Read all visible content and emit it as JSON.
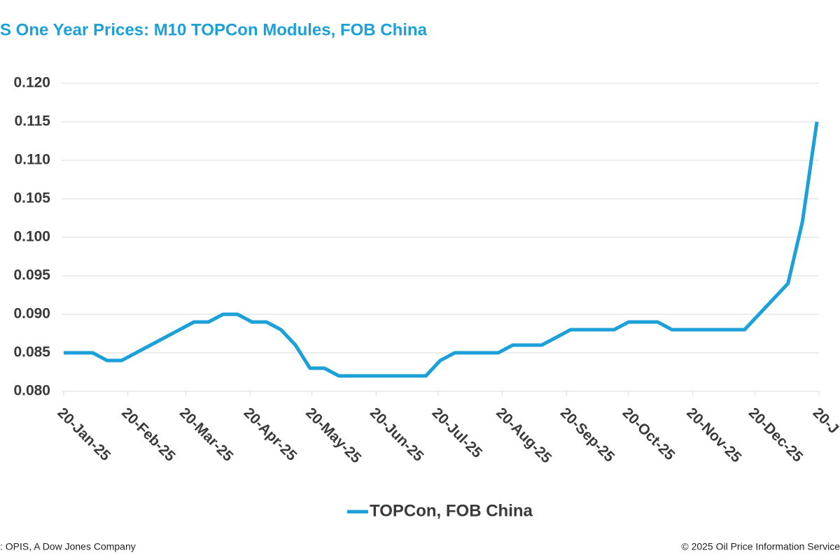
{
  "chart_data": {
    "type": "line",
    "title": "S One Year Prices: M10 TOPCon Modules, FOB China",
    "source": ": OPIS, A Dow Jones Company",
    "copyright": "© 2025 Oil Price Information Service",
    "x": [
      "2025-01-20",
      "2025-01-27",
      "2025-02-03",
      "2025-02-10",
      "2025-02-17",
      "2025-02-24",
      "2025-03-03",
      "2025-03-10",
      "2025-03-17",
      "2025-03-24",
      "2025-03-31",
      "2025-04-07",
      "2025-04-14",
      "2025-04-21",
      "2025-04-28",
      "2025-05-05",
      "2025-05-12",
      "2025-05-19",
      "2025-05-26",
      "2025-06-02",
      "2025-06-09",
      "2025-06-16",
      "2025-06-23",
      "2025-06-30",
      "2025-07-07",
      "2025-07-14",
      "2025-07-21",
      "2025-07-28",
      "2025-08-04",
      "2025-08-11",
      "2025-08-18",
      "2025-08-25",
      "2025-09-01",
      "2025-09-08",
      "2025-09-15",
      "2025-09-22",
      "2025-09-29",
      "2025-10-06",
      "2025-10-13",
      "2025-10-20",
      "2025-10-27",
      "2025-11-03",
      "2025-11-10",
      "2025-11-17",
      "2025-11-24",
      "2025-12-01",
      "2025-12-08",
      "2025-12-15",
      "2025-12-22",
      "2025-12-29",
      "2026-01-05",
      "2026-01-12",
      "2026-01-19"
    ],
    "series": [
      {
        "name": "TOPCon, FOB China",
        "color": "#1ba1d8",
        "values": [
          0.085,
          0.085,
          0.085,
          0.084,
          0.084,
          0.085,
          0.086,
          0.087,
          0.088,
          0.089,
          0.089,
          0.09,
          0.09,
          0.089,
          0.089,
          0.088,
          0.086,
          0.083,
          0.083,
          0.082,
          0.082,
          0.082,
          0.082,
          0.082,
          0.082,
          0.082,
          0.084,
          0.085,
          0.085,
          0.085,
          0.085,
          0.086,
          0.086,
          0.086,
          0.087,
          0.088,
          0.088,
          0.088,
          0.088,
          0.089,
          0.089,
          0.089,
          0.088,
          0.088,
          0.088,
          0.088,
          0.088,
          0.088,
          0.09,
          0.092,
          0.094,
          0.102,
          0.115
        ]
      }
    ],
    "xlim": [
      "2025-01-19",
      "2026-01-20"
    ],
    "xticks": [
      {
        "value": "2025-01-20",
        "label": "20-Jan-25"
      },
      {
        "value": "2025-02-20",
        "label": "20-Feb-25"
      },
      {
        "value": "2025-03-20",
        "label": "20-Mar-25"
      },
      {
        "value": "2025-04-20",
        "label": "20-Apr-25"
      },
      {
        "value": "2025-05-20",
        "label": "20-May-25"
      },
      {
        "value": "2025-06-20",
        "label": "20-Jun-25"
      },
      {
        "value": "2025-07-20",
        "label": "20-Jul-25"
      },
      {
        "value": "2025-08-20",
        "label": "20-Aug-25"
      },
      {
        "value": "2025-09-20",
        "label": "20-Sep-25"
      },
      {
        "value": "2025-10-20",
        "label": "20-Oct-25"
      },
      {
        "value": "2025-11-20",
        "label": "20-Nov-25"
      },
      {
        "value": "2025-12-20",
        "label": "20-Dec-25"
      },
      {
        "value": "2026-01-20",
        "label": "20-J"
      }
    ],
    "ylim": [
      0.08,
      0.12
    ],
    "yticks": [
      {
        "value": 0.08,
        "label": "0.080"
      },
      {
        "value": 0.085,
        "label": "0.085"
      },
      {
        "value": 0.09,
        "label": "0.090"
      },
      {
        "value": 0.095,
        "label": "0.095"
      },
      {
        "value": 0.1,
        "label": "0.100"
      },
      {
        "value": 0.105,
        "label": "0.105"
      },
      {
        "value": 0.11,
        "label": "0.110"
      },
      {
        "value": 0.115,
        "label": "0.115"
      },
      {
        "value": 0.12,
        "label": "0.120"
      }
    ],
    "grid": true,
    "legend": "bottom"
  }
}
